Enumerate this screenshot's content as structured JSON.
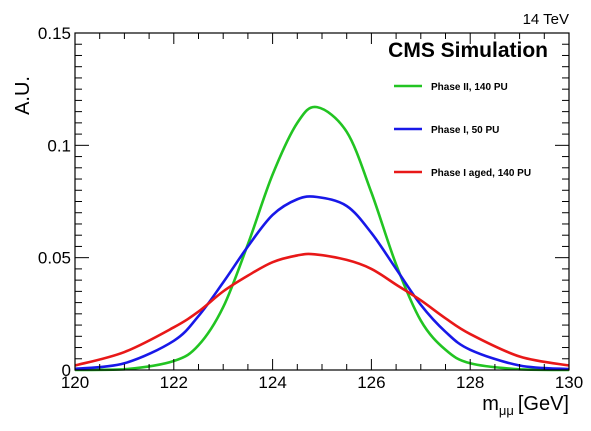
{
  "chart_data": {
    "type": "line",
    "energy_label": "14 TeV",
    "experiment_label": "CMS Simulation",
    "xlabel": "m",
    "xlabel_subscript": "μμ",
    "xlabel_unit": "[GeV]",
    "ylabel": "A.U.",
    "xlim": [
      120,
      130
    ],
    "ylim": [
      0,
      0.15
    ],
    "x_ticks": [
      120,
      122,
      124,
      126,
      128,
      130
    ],
    "x_tick_labels": [
      "120",
      "122",
      "124",
      "126",
      "128",
      "130"
    ],
    "y_ticks": [
      0,
      0.05,
      0.1,
      0.15
    ],
    "y_tick_labels": [
      "0",
      "0.05",
      "0.1",
      "0.15"
    ],
    "grid": false,
    "legend_position": "top-right",
    "series": [
      {
        "name": "Phase II, 140 PU",
        "color": "#22c422",
        "x": [
          120,
          121,
          122,
          122.5,
          123,
          123.5,
          124,
          124.5,
          124.9,
          125.5,
          126,
          126.5,
          127,
          127.5,
          128,
          129,
          130
        ],
        "y": [
          0.0,
          0.0003,
          0.004,
          0.011,
          0.028,
          0.056,
          0.087,
          0.11,
          0.117,
          0.106,
          0.079,
          0.047,
          0.022,
          0.009,
          0.003,
          0.0003,
          0.0
        ]
      },
      {
        "name": "Phase I, 50 PU",
        "color": "#1818e8",
        "x": [
          120,
          121,
          122,
          122.5,
          123,
          123.5,
          124,
          124.5,
          124.9,
          125.5,
          126,
          126.5,
          127,
          127.5,
          128,
          129,
          130
        ],
        "y": [
          0.0005,
          0.003,
          0.013,
          0.024,
          0.039,
          0.055,
          0.069,
          0.076,
          0.077,
          0.073,
          0.061,
          0.045,
          0.029,
          0.017,
          0.009,
          0.002,
          0.0004
        ]
      },
      {
        "name": "Phase I aged, 140 PU",
        "color": "#e81818",
        "x": [
          120,
          121,
          122,
          122.5,
          123,
          123.5,
          124,
          124.5,
          124.85,
          125.5,
          126,
          126.5,
          127,
          127.5,
          128,
          129,
          130
        ],
        "y": [
          0.002,
          0.008,
          0.019,
          0.026,
          0.035,
          0.042,
          0.048,
          0.051,
          0.0515,
          0.049,
          0.045,
          0.038,
          0.031,
          0.023,
          0.016,
          0.006,
          0.002
        ]
      }
    ]
  }
}
